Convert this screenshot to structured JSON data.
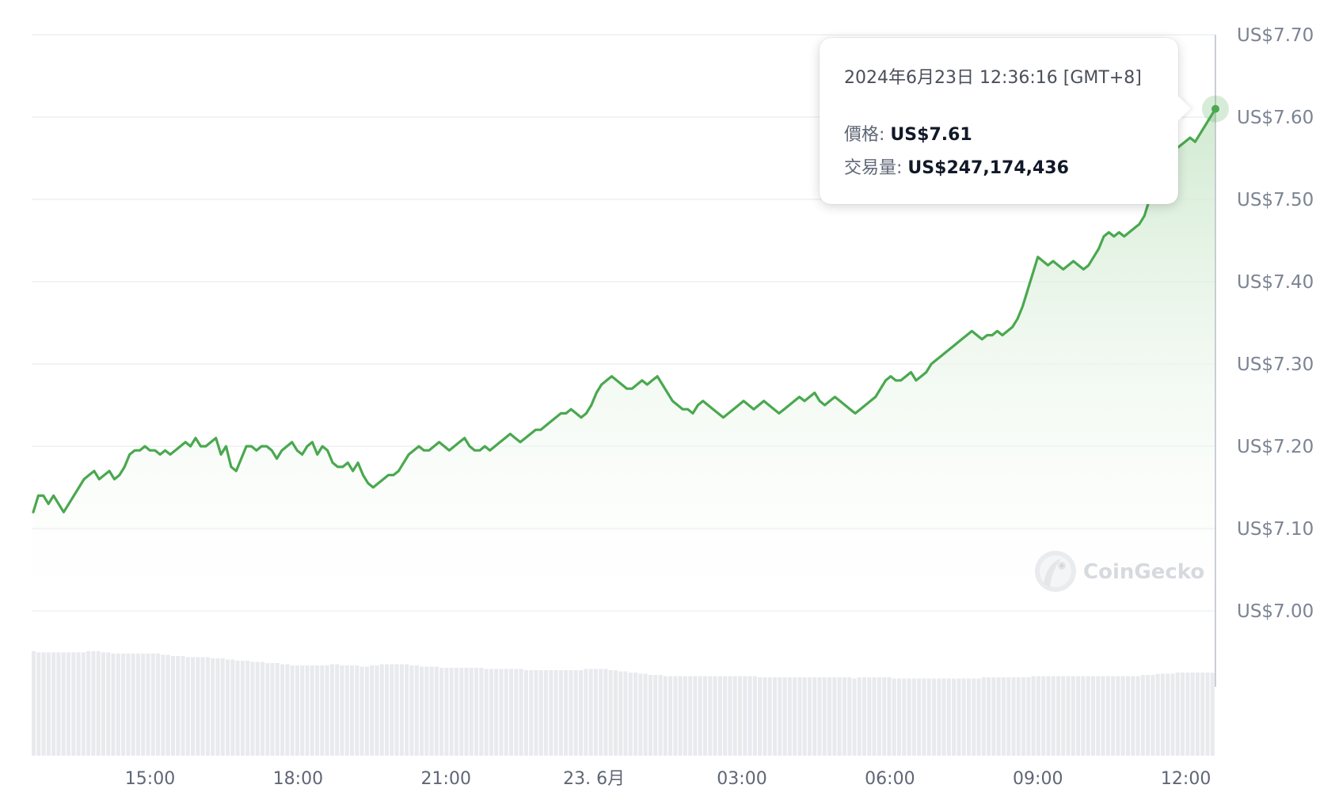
{
  "chart_data": {
    "type": "area",
    "y_axis": {
      "min": 7.0,
      "max": 7.7,
      "ticks": [
        "US$7.70",
        "US$7.60",
        "US$7.50",
        "US$7.40",
        "US$7.30",
        "US$7.20",
        "US$7.10",
        "US$7.00"
      ],
      "tick_values": [
        7.7,
        7.6,
        7.5,
        7.4,
        7.3,
        7.2,
        7.1,
        7.0
      ],
      "position": "right",
      "grid": true
    },
    "x_axis": {
      "start": "2024-06-22 12:36",
      "end": "2024-06-23 12:36",
      "tick_labels": [
        "15:00",
        "18:00",
        "21:00",
        "23. 6月",
        "03:00",
        "06:00",
        "09:00",
        "12:00"
      ],
      "tick_times": [
        "2024-06-22 15:00",
        "2024-06-22 18:00",
        "2024-06-22 21:00",
        "2024-06-23 00:00",
        "2024-06-23 03:00",
        "2024-06-23 06:00",
        "2024-06-23 09:00",
        "2024-06-23 12:00"
      ]
    },
    "series": [
      {
        "kind": "price",
        "color": "#4aa84f",
        "values": [
          7.12,
          7.14,
          7.14,
          7.13,
          7.14,
          7.13,
          7.12,
          7.13,
          7.14,
          7.15,
          7.16,
          7.165,
          7.17,
          7.16,
          7.165,
          7.17,
          7.16,
          7.165,
          7.175,
          7.19,
          7.195,
          7.195,
          7.2,
          7.195,
          7.195,
          7.19,
          7.195,
          7.19,
          7.195,
          7.2,
          7.205,
          7.2,
          7.21,
          7.2,
          7.2,
          7.205,
          7.21,
          7.19,
          7.2,
          7.175,
          7.17,
          7.185,
          7.2,
          7.2,
          7.195,
          7.2,
          7.2,
          7.195,
          7.185,
          7.195,
          7.2,
          7.205,
          7.195,
          7.19,
          7.2,
          7.205,
          7.19,
          7.2,
          7.195,
          7.18,
          7.175,
          7.175,
          7.18,
          7.17,
          7.18,
          7.165,
          7.155,
          7.15,
          7.155,
          7.16,
          7.165,
          7.165,
          7.17,
          7.18,
          7.19,
          7.195,
          7.2,
          7.195,
          7.195,
          7.2,
          7.205,
          7.2,
          7.195,
          7.2,
          7.205,
          7.21,
          7.2,
          7.195,
          7.195,
          7.2,
          7.195,
          7.2,
          7.205,
          7.21,
          7.215,
          7.21,
          7.205,
          7.21,
          7.215,
          7.22,
          7.22,
          7.225,
          7.23,
          7.235,
          7.24,
          7.24,
          7.245,
          7.24,
          7.235,
          7.24,
          7.25,
          7.265,
          7.275,
          7.28,
          7.285,
          7.28,
          7.275,
          7.27,
          7.27,
          7.275,
          7.28,
          7.275,
          7.28,
          7.285,
          7.275,
          7.265,
          7.255,
          7.25,
          7.245,
          7.245,
          7.24,
          7.25,
          7.255,
          7.25,
          7.245,
          7.24,
          7.235,
          7.24,
          7.245,
          7.25,
          7.255,
          7.25,
          7.245,
          7.25,
          7.255,
          7.25,
          7.245,
          7.24,
          7.245,
          7.25,
          7.255,
          7.26,
          7.255,
          7.26,
          7.265,
          7.255,
          7.25,
          7.255,
          7.26,
          7.255,
          7.25,
          7.245,
          7.24,
          7.245,
          7.25,
          7.255,
          7.26,
          7.27,
          7.28,
          7.285,
          7.28,
          7.28,
          7.285,
          7.29,
          7.28,
          7.285,
          7.29,
          7.3,
          7.305,
          7.31,
          7.315,
          7.32,
          7.325,
          7.33,
          7.335,
          7.34,
          7.335,
          7.33,
          7.335,
          7.335,
          7.34,
          7.335,
          7.34,
          7.345,
          7.355,
          7.37,
          7.39,
          7.41,
          7.43,
          7.425,
          7.42,
          7.425,
          7.42,
          7.415,
          7.42,
          7.425,
          7.42,
          7.415,
          7.42,
          7.43,
          7.44,
          7.455,
          7.46,
          7.455,
          7.46,
          7.455,
          7.46,
          7.465,
          7.47,
          7.48,
          7.5,
          7.52,
          7.54,
          7.55,
          7.555,
          7.56,
          7.565,
          7.57,
          7.575,
          7.57,
          7.58,
          7.59,
          7.6,
          7.61
        ]
      },
      {
        "kind": "volume",
        "color": "#e8eaee",
        "note_unit": "relative",
        "values": [
          0.88,
          0.87,
          0.87,
          0.87,
          0.87,
          0.87,
          0.87,
          0.87,
          0.87,
          0.87,
          0.87,
          0.88,
          0.88,
          0.88,
          0.87,
          0.87,
          0.86,
          0.86,
          0.86,
          0.86,
          0.86,
          0.86,
          0.86,
          0.86,
          0.86,
          0.86,
          0.85,
          0.85,
          0.84,
          0.84,
          0.84,
          0.83,
          0.83,
          0.83,
          0.83,
          0.83,
          0.82,
          0.82,
          0.82,
          0.81,
          0.81,
          0.8,
          0.8,
          0.8,
          0.79,
          0.79,
          0.79,
          0.78,
          0.78,
          0.78,
          0.77,
          0.77,
          0.76,
          0.76,
          0.76,
          0.76,
          0.76,
          0.76,
          0.76,
          0.76,
          0.77,
          0.77,
          0.76,
          0.76,
          0.76,
          0.76,
          0.75,
          0.75,
          0.76,
          0.76,
          0.77,
          0.77,
          0.77,
          0.77,
          0.77,
          0.77,
          0.76,
          0.76,
          0.75,
          0.75,
          0.75,
          0.75,
          0.74,
          0.74,
          0.74,
          0.74,
          0.74,
          0.74,
          0.74,
          0.74,
          0.74,
          0.73,
          0.73,
          0.73,
          0.73,
          0.73,
          0.73,
          0.73,
          0.73,
          0.72,
          0.72,
          0.72,
          0.72,
          0.72,
          0.72,
          0.72,
          0.72,
          0.72,
          0.72,
          0.72,
          0.72,
          0.73,
          0.73,
          0.73,
          0.73,
          0.73,
          0.72,
          0.72,
          0.71,
          0.71,
          0.7,
          0.7,
          0.69,
          0.69,
          0.68,
          0.68,
          0.68,
          0.67,
          0.67,
          0.67,
          0.67,
          0.67,
          0.67,
          0.67,
          0.67,
          0.67,
          0.67,
          0.67,
          0.67,
          0.67,
          0.67,
          0.67,
          0.67,
          0.67,
          0.67,
          0.67,
          0.66,
          0.66,
          0.66,
          0.66,
          0.66,
          0.66,
          0.66,
          0.66,
          0.66,
          0.66,
          0.66,
          0.66,
          0.66,
          0.66,
          0.66,
          0.66,
          0.66,
          0.66,
          0.66,
          0.65,
          0.66,
          0.66,
          0.66,
          0.66,
          0.66,
          0.66,
          0.66,
          0.65,
          0.65,
          0.65,
          0.65,
          0.65,
          0.65,
          0.65,
          0.65,
          0.65,
          0.65,
          0.65,
          0.65,
          0.65,
          0.65,
          0.65,
          0.65,
          0.65,
          0.65,
          0.66,
          0.66,
          0.66,
          0.66,
          0.66,
          0.66,
          0.66,
          0.66,
          0.66,
          0.66,
          0.67,
          0.67,
          0.67,
          0.67,
          0.67,
          0.67,
          0.67,
          0.67,
          0.67,
          0.67,
          0.67,
          0.67,
          0.67,
          0.67,
          0.67,
          0.67,
          0.67,
          0.67,
          0.67,
          0.67,
          0.67,
          0.67,
          0.68,
          0.68,
          0.68,
          0.69,
          0.69,
          0.69,
          0.69,
          0.7,
          0.7,
          0.7,
          0.7,
          0.7,
          0.7,
          0.7,
          0.7
        ]
      }
    ],
    "area_fill": {
      "top_color": "#cfe9cf",
      "bottom_color": "#ffffff"
    },
    "hover_point": {
      "color": "#4aa84f"
    },
    "tooltip": {
      "date": "2024年6月23日 12:36:16 [GMT+8]",
      "price_label": "價格:",
      "price_value": "US$7.61",
      "volume_label": "交易量:",
      "volume_value": "US$247,174,436"
    },
    "watermark": {
      "text": "CoinGecko",
      "icon": "gecko-logo-icon"
    }
  }
}
